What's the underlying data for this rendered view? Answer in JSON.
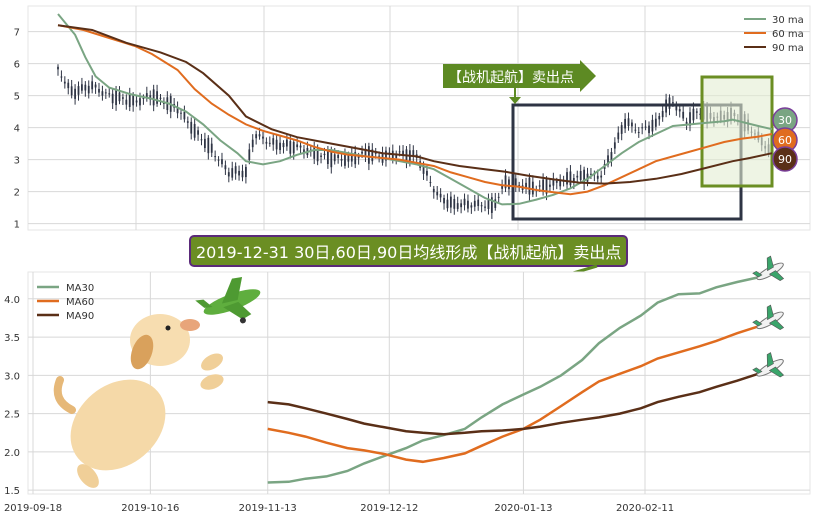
{
  "colors": {
    "ma30": "#7aa583",
    "ma60": "#e06c1f",
    "ma90": "#5a2f17",
    "candle": "#2e3444",
    "grid": "#d8d8d8",
    "banner_fill": "#6b8e23",
    "top_label_fill": "#4b7d1f",
    "box_dark": "#2e3444",
    "box_green": "#6b8e23",
    "box_green_fill": "#e2ecd2",
    "badge_30": "#7aa583",
    "badge_60": "#e06c1f",
    "badge_90": "#5a2f17"
  },
  "top_chart": {
    "legend": [
      "30 ma",
      "60 ma",
      "90 ma"
    ],
    "yticks": [
      "1",
      "2",
      "3",
      "4",
      "5",
      "6",
      "7"
    ],
    "annotation": "【战机起航】卖出点",
    "badges": [
      "30",
      "60",
      "90"
    ]
  },
  "banner": {
    "text": "2019-12-31 30日,60日,90日均线形成【战机起航】卖出点"
  },
  "chart_data": [
    {
      "type": "line",
      "panel": "top",
      "yticks": [
        1,
        2,
        3,
        4,
        5,
        6,
        7
      ],
      "ylim": [
        0.8,
        7.8
      ],
      "series": [
        {
          "name": "30 ma",
          "points": [
            [
              0,
              7.55
            ],
            [
              10,
              6.9
            ],
            [
              16,
              6.2
            ],
            [
              22,
              5.6
            ],
            [
              30,
              5.25
            ],
            [
              42,
              5.05
            ],
            [
              55,
              4.9
            ],
            [
              65,
              4.75
            ],
            [
              75,
              4.5
            ],
            [
              85,
              4.1
            ],
            [
              95,
              3.6
            ],
            [
              105,
              3.2
            ],
            [
              110,
              2.95
            ],
            [
              120,
              2.85
            ],
            [
              130,
              2.95
            ],
            [
              140,
              3.15
            ],
            [
              150,
              3.3
            ],
            [
              160,
              3.3
            ],
            [
              170,
              3.2
            ],
            [
              180,
              3.1
            ],
            [
              190,
              3.05
            ],
            [
              200,
              2.95
            ],
            [
              210,
              2.85
            ],
            [
              220,
              2.7
            ],
            [
              230,
              2.4
            ],
            [
              240,
              2.1
            ],
            [
              250,
              1.8
            ],
            [
              260,
              1.6
            ],
            [
              270,
              1.62
            ],
            [
              280,
              1.75
            ],
            [
              290,
              1.9
            ],
            [
              300,
              2.1
            ],
            [
              310,
              2.4
            ],
            [
              320,
              2.8
            ],
            [
              330,
              3.2
            ],
            [
              340,
              3.55
            ],
            [
              350,
              3.8
            ],
            [
              360,
              4.05
            ],
            [
              370,
              4.1
            ],
            [
              380,
              4.15
            ],
            [
              390,
              4.2
            ],
            [
              395,
              4.25
            ],
            [
              410,
              4.05
            ],
            [
              418,
              3.95
            ]
          ]
        },
        {
          "name": "60 ma",
          "points": [
            [
              0,
              7.2
            ],
            [
              15,
              7.05
            ],
            [
              30,
              6.8
            ],
            [
              45,
              6.55
            ],
            [
              55,
              6.3
            ],
            [
              70,
              5.8
            ],
            [
              80,
              5.2
            ],
            [
              90,
              4.75
            ],
            [
              100,
              4.4
            ],
            [
              110,
              4.1
            ],
            [
              120,
              3.9
            ],
            [
              130,
              3.75
            ],
            [
              140,
              3.6
            ],
            [
              150,
              3.4
            ],
            [
              160,
              3.25
            ],
            [
              170,
              3.15
            ],
            [
              180,
              3.1
            ],
            [
              190,
              3.05
            ],
            [
              200,
              3.0
            ],
            [
              210,
              2.9
            ],
            [
              220,
              2.8
            ],
            [
              230,
              2.6
            ],
            [
              240,
              2.45
            ],
            [
              250,
              2.3
            ],
            [
              260,
              2.2
            ],
            [
              270,
              2.15
            ],
            [
              280,
              2.05
            ],
            [
              290,
              1.98
            ],
            [
              300,
              1.92
            ],
            [
              310,
              2.0
            ],
            [
              320,
              2.2
            ],
            [
              330,
              2.45
            ],
            [
              340,
              2.7
            ],
            [
              350,
              2.95
            ],
            [
              360,
              3.1
            ],
            [
              370,
              3.25
            ],
            [
              380,
              3.4
            ],
            [
              390,
              3.55
            ],
            [
              400,
              3.65
            ],
            [
              410,
              3.72
            ],
            [
              418,
              3.8
            ]
          ]
        },
        {
          "name": "90 ma",
          "points": [
            [
              0,
              7.2
            ],
            [
              20,
              7.05
            ],
            [
              40,
              6.65
            ],
            [
              60,
              6.35
            ],
            [
              75,
              6.05
            ],
            [
              85,
              5.7
            ],
            [
              100,
              5.0
            ],
            [
              110,
              4.35
            ],
            [
              125,
              3.95
            ],
            [
              140,
              3.7
            ],
            [
              160,
              3.5
            ],
            [
              175,
              3.35
            ],
            [
              190,
              3.2
            ],
            [
              200,
              3.15
            ],
            [
              210,
              3.1
            ],
            [
              220,
              2.95
            ],
            [
              235,
              2.8
            ],
            [
              250,
              2.7
            ],
            [
              262,
              2.62
            ],
            [
              275,
              2.5
            ],
            [
              290,
              2.38
            ],
            [
              305,
              2.28
            ],
            [
              320,
              2.25
            ],
            [
              335,
              2.3
            ],
            [
              350,
              2.4
            ],
            [
              365,
              2.55
            ],
            [
              380,
              2.75
            ],
            [
              395,
              2.95
            ],
            [
              405,
              3.05
            ],
            [
              418,
              3.2
            ]
          ]
        }
      ]
    },
    {
      "type": "line",
      "panel": "bottom",
      "x": [
        "2019-09-18",
        "2019-10-16",
        "2019-11-13",
        "2019-12-12",
        "2020-01-13",
        "2020-02-11"
      ],
      "ylim": [
        1.45,
        4.35
      ],
      "yticks": [
        1.5,
        2.0,
        2.5,
        3.0,
        3.5,
        4.0
      ],
      "series": [
        {
          "name": "MA30",
          "points": [
            [
              "2019-11-13",
              1.6
            ],
            [
              "2019-11-18",
              1.61
            ],
            [
              "2019-11-22",
              1.65
            ],
            [
              "2019-11-27",
              1.68
            ],
            [
              "2019-12-02",
              1.75
            ],
            [
              "2019-12-06",
              1.85
            ],
            [
              "2019-12-11",
              1.95
            ],
            [
              "2019-12-16",
              2.05
            ],
            [
              "2019-12-20",
              2.15
            ],
            [
              "2019-12-25",
              2.22
            ],
            [
              "2019-12-30",
              2.3
            ],
            [
              "2020-01-03",
              2.45
            ],
            [
              "2020-01-08",
              2.62
            ],
            [
              "2020-01-13",
              2.75
            ],
            [
              "2020-01-17",
              2.85
            ],
            [
              "2020-01-22",
              3.0
            ],
            [
              "2020-01-27",
              3.2
            ],
            [
              "2020-01-31",
              3.42
            ],
            [
              "2020-02-05",
              3.62
            ],
            [
              "2020-02-10",
              3.78
            ],
            [
              "2020-02-14",
              3.95
            ],
            [
              "2020-02-19",
              4.06
            ],
            [
              "2020-02-24",
              4.07
            ],
            [
              "2020-02-28",
              4.15
            ],
            [
              "2020-03-04",
              4.22
            ],
            [
              "2020-03-09",
              4.28
            ]
          ]
        },
        {
          "name": "MA60",
          "points": [
            [
              "2019-11-13",
              2.3
            ],
            [
              "2019-11-18",
              2.25
            ],
            [
              "2019-11-22",
              2.2
            ],
            [
              "2019-11-27",
              2.12
            ],
            [
              "2019-12-02",
              2.05
            ],
            [
              "2019-12-06",
              2.02
            ],
            [
              "2019-12-11",
              1.97
            ],
            [
              "2019-12-16",
              1.9
            ],
            [
              "2019-12-20",
              1.87
            ],
            [
              "2019-12-25",
              1.92
            ],
            [
              "2019-12-30",
              1.98
            ],
            [
              "2020-01-03",
              2.08
            ],
            [
              "2020-01-08",
              2.2
            ],
            [
              "2020-01-13",
              2.3
            ],
            [
              "2020-01-17",
              2.42
            ],
            [
              "2020-01-22",
              2.6
            ],
            [
              "2020-01-27",
              2.78
            ],
            [
              "2020-01-31",
              2.92
            ],
            [
              "2020-02-05",
              3.02
            ],
            [
              "2020-02-10",
              3.12
            ],
            [
              "2020-02-14",
              3.22
            ],
            [
              "2020-02-19",
              3.3
            ],
            [
              "2020-02-24",
              3.38
            ],
            [
              "2020-02-28",
              3.45
            ],
            [
              "2020-03-04",
              3.55
            ],
            [
              "2020-03-09",
              3.64
            ]
          ]
        },
        {
          "name": "MA90",
          "points": [
            [
              "2019-11-13",
              2.65
            ],
            [
              "2019-11-18",
              2.62
            ],
            [
              "2019-11-22",
              2.57
            ],
            [
              "2019-11-27",
              2.5
            ],
            [
              "2019-12-02",
              2.43
            ],
            [
              "2019-12-06",
              2.37
            ],
            [
              "2019-12-11",
              2.32
            ],
            [
              "2019-12-16",
              2.27
            ],
            [
              "2019-12-20",
              2.25
            ],
            [
              "2019-12-25",
              2.23
            ],
            [
              "2019-12-30",
              2.25
            ],
            [
              "2020-01-03",
              2.27
            ],
            [
              "2020-01-08",
              2.28
            ],
            [
              "2020-01-13",
              2.3
            ],
            [
              "2020-01-17",
              2.33
            ],
            [
              "2020-01-22",
              2.38
            ],
            [
              "2020-01-27",
              2.42
            ],
            [
              "2020-01-31",
              2.45
            ],
            [
              "2020-02-05",
              2.5
            ],
            [
              "2020-02-10",
              2.57
            ],
            [
              "2020-02-14",
              2.65
            ],
            [
              "2020-02-19",
              2.72
            ],
            [
              "2020-02-24",
              2.78
            ],
            [
              "2020-02-28",
              2.85
            ],
            [
              "2020-03-04",
              2.93
            ],
            [
              "2020-03-09",
              3.02
            ]
          ]
        }
      ]
    }
  ]
}
